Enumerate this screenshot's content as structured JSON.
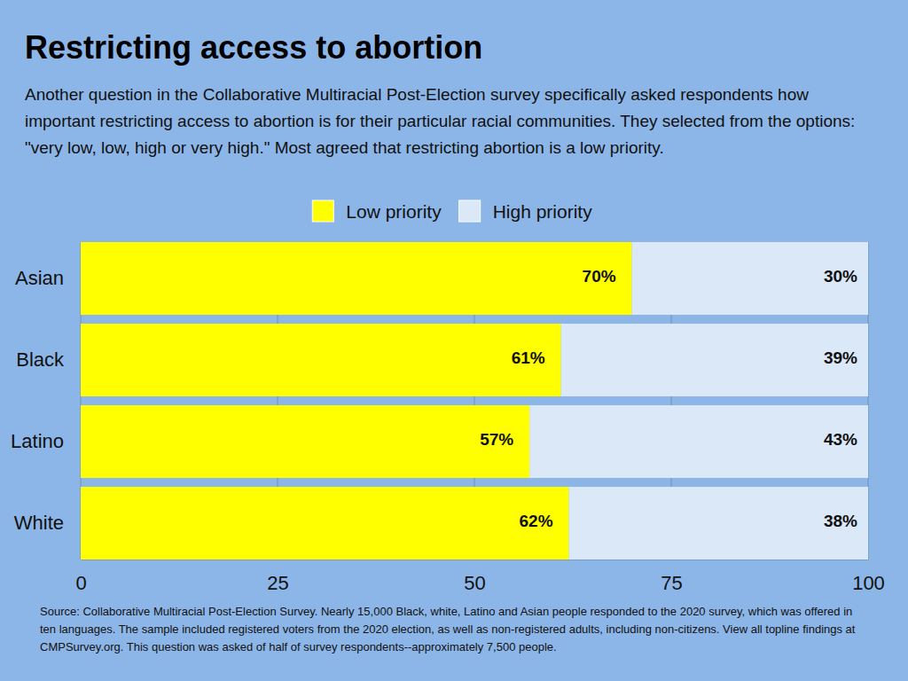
{
  "chart_data": {
    "type": "bar",
    "orientation": "horizontal",
    "stacked": true,
    "data_labels": true,
    "grid": true,
    "legend": "top",
    "title": "Restricting access to abortion",
    "subtitle": "Another question in the Collaborative Multiracial Post-Election survey specifically asked respondents how important restricting access to abortion is for their particular racial communities. They selected from the options: \"very low, low, high or very high.\" Most agreed that restricting abortion is a low priority.",
    "source": "Source: Collaborative Multiracial Post-Election Survey. Nearly 15,000 Black, white, Latino and Asian people responded to the 2020 survey, which was offered in ten languages. The sample included registered voters from the 2020 election, as well as non-registered adults, including non-citizens. View all topline findings at CMPSurvey.org. This question was asked of half of survey respondents--approximately 7,500 people.",
    "categories": [
      "Asian",
      "Black",
      "Latino",
      "White"
    ],
    "series": [
      {
        "name": "Low priority",
        "color": "#ffff00",
        "values": [
          70,
          61,
          57,
          62
        ],
        "value_labels": [
          "70%",
          "61%",
          "57%",
          "62%"
        ]
      },
      {
        "name": "High priority",
        "color": "#dae8f8",
        "values": [
          30,
          39,
          43,
          38
        ],
        "value_labels": [
          "30%",
          "39%",
          "43%",
          "38%"
        ]
      }
    ],
    "xlim": [
      0,
      100
    ],
    "xticks": [
      0,
      25,
      50,
      75,
      100
    ]
  }
}
